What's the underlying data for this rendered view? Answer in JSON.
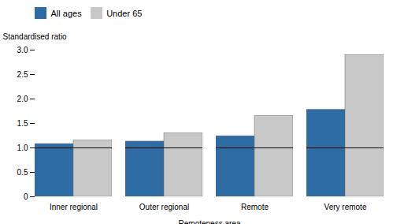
{
  "chart_data": {
    "type": "bar",
    "categories": [
      "Inner regional",
      "Outer regional",
      "Remote",
      "Very remote"
    ],
    "series": [
      {
        "name": "All ages",
        "color": "#2E6DA4",
        "values": [
          1.08,
          1.13,
          1.24,
          1.78
        ]
      },
      {
        "name": "Under 65",
        "color": "#C8C8C8",
        "values": [
          1.15,
          1.3,
          1.65,
          2.9
        ]
      }
    ],
    "xlabel": "Remoteness area",
    "ylabel": "Standardised ratio",
    "ylim": [
      0,
      3.0
    ],
    "yticks": [
      0,
      0.5,
      {
        "value": 1.0,
        "label": "1.0"
      },
      1.5,
      {
        "value": 2.0,
        "label": "2.0"
      },
      2.5,
      {
        "value": 3.0,
        "label": "3.0"
      }
    ],
    "reference_line": 1.0,
    "legend": "upper left",
    "grid": false
  }
}
